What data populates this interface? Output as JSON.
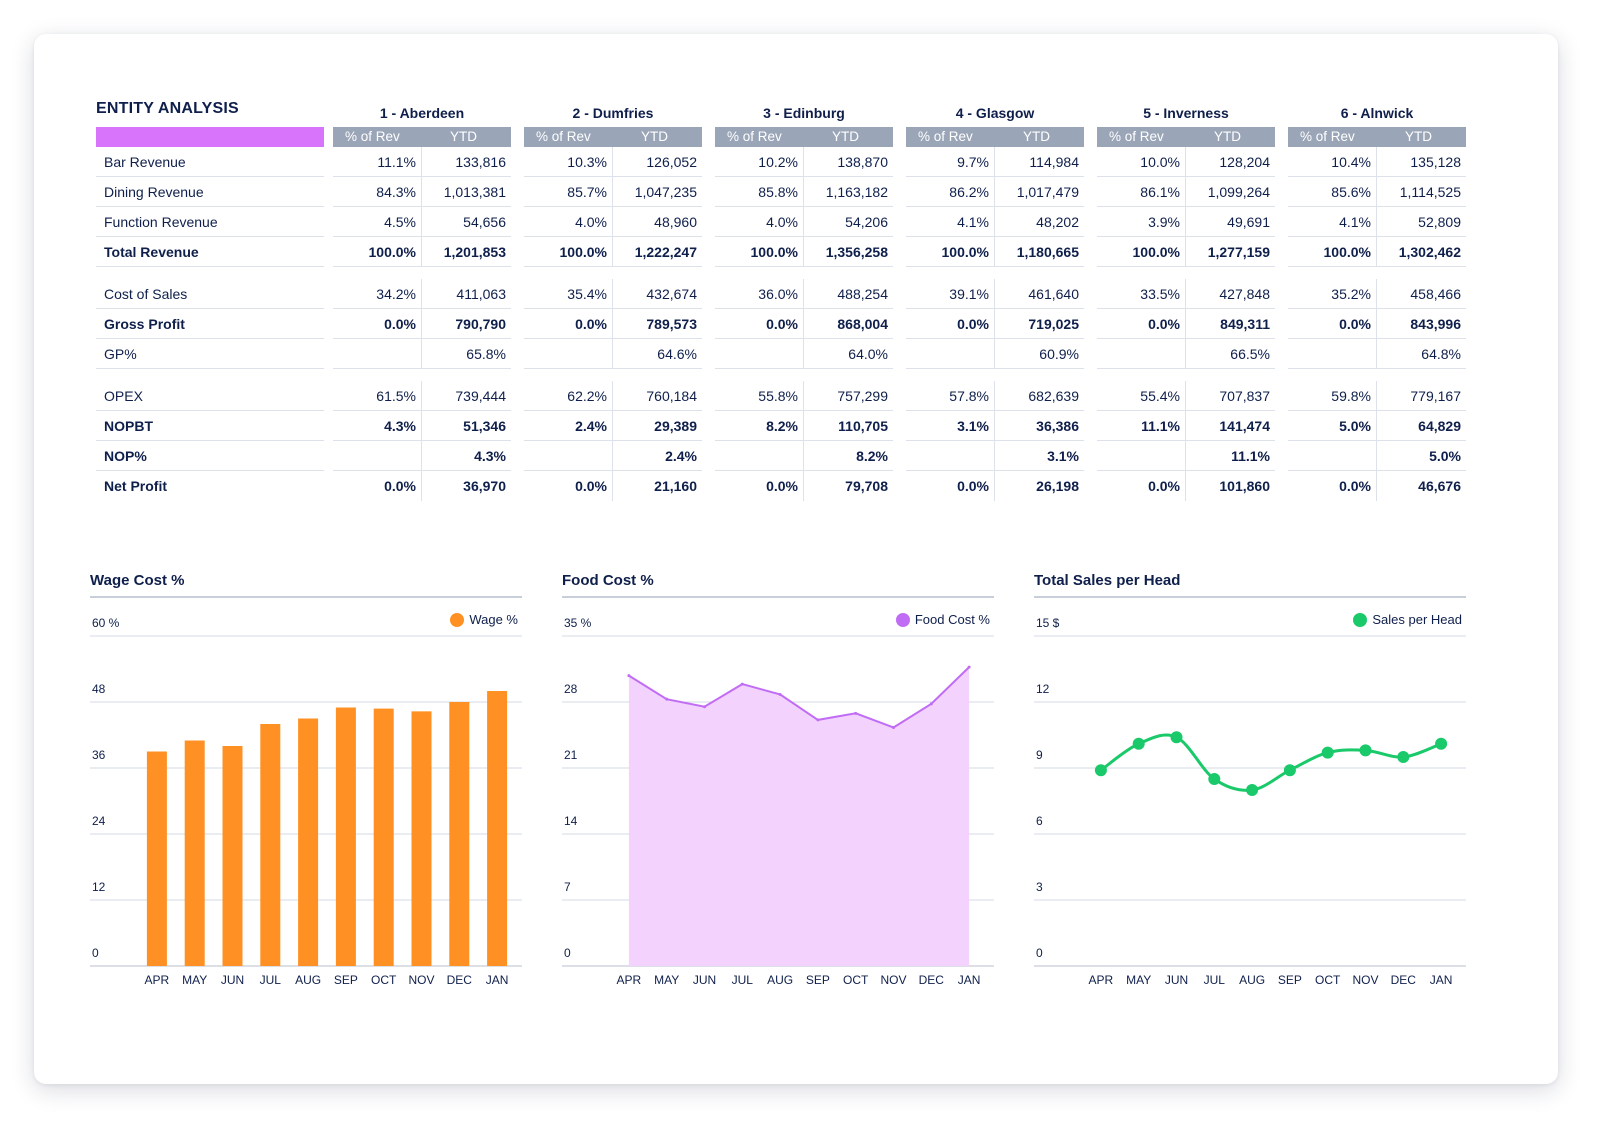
{
  "table": {
    "title": "ENTITY ANALYSIS",
    "accent_color": "#d873fb",
    "header_color": "#9aa6b8",
    "sub_headers": {
      "pct": "% of Rev",
      "ytd": "YTD"
    },
    "entities": [
      "1 - Aberdeen",
      "2 - Dumfries",
      "3 - Edinburg",
      "4 - Glasgow",
      "5 - Inverness",
      "6 - Alnwick"
    ],
    "rows": [
      {
        "label": "Bar Revenue",
        "bold": false,
        "cells": [
          [
            "11.1%",
            "133,816"
          ],
          [
            "10.3%",
            "126,052"
          ],
          [
            "10.2%",
            "138,870"
          ],
          [
            "9.7%",
            "114,984"
          ],
          [
            "10.0%",
            "128,204"
          ],
          [
            "10.4%",
            "135,128"
          ]
        ]
      },
      {
        "label": "Dining Revenue",
        "bold": false,
        "cells": [
          [
            "84.3%",
            "1,013,381"
          ],
          [
            "85.7%",
            "1,047,235"
          ],
          [
            "85.8%",
            "1,163,182"
          ],
          [
            "86.2%",
            "1,017,479"
          ],
          [
            "86.1%",
            "1,099,264"
          ],
          [
            "85.6%",
            "1,114,525"
          ]
        ]
      },
      {
        "label": "Function Revenue",
        "bold": false,
        "cells": [
          [
            "4.5%",
            "54,656"
          ],
          [
            "4.0%",
            "48,960"
          ],
          [
            "4.0%",
            "54,206"
          ],
          [
            "4.1%",
            "48,202"
          ],
          [
            "3.9%",
            "49,691"
          ],
          [
            "4.1%",
            "52,809"
          ]
        ]
      },
      {
        "label": "Total Revenue",
        "bold": true,
        "cells": [
          [
            "100.0%",
            "1,201,853"
          ],
          [
            "100.0%",
            "1,222,247"
          ],
          [
            "100.0%",
            "1,356,258"
          ],
          [
            "100.0%",
            "1,180,665"
          ],
          [
            "100.0%",
            "1,277,159"
          ],
          [
            "100.0%",
            "1,302,462"
          ]
        ]
      },
      {
        "label": "Cost of Sales",
        "bold": false,
        "cells": [
          [
            "34.2%",
            "411,063"
          ],
          [
            "35.4%",
            "432,674"
          ],
          [
            "36.0%",
            "488,254"
          ],
          [
            "39.1%",
            "461,640"
          ],
          [
            "33.5%",
            "427,848"
          ],
          [
            "35.2%",
            "458,466"
          ]
        ]
      },
      {
        "label": "Gross Profit",
        "bold": true,
        "cells": [
          [
            "0.0%",
            "790,790"
          ],
          [
            "0.0%",
            "789,573"
          ],
          [
            "0.0%",
            "868,004"
          ],
          [
            "0.0%",
            "719,025"
          ],
          [
            "0.0%",
            "849,311"
          ],
          [
            "0.0%",
            "843,996"
          ]
        ]
      },
      {
        "label": "GP%",
        "bold": false,
        "cells": [
          [
            "",
            "65.8%"
          ],
          [
            "",
            "64.6%"
          ],
          [
            "",
            "64.0%"
          ],
          [
            "",
            "60.9%"
          ],
          [
            "",
            "66.5%"
          ],
          [
            "",
            "64.8%"
          ]
        ]
      },
      {
        "label": "OPEX",
        "bold": false,
        "cells": [
          [
            "61.5%",
            "739,444"
          ],
          [
            "62.2%",
            "760,184"
          ],
          [
            "55.8%",
            "757,299"
          ],
          [
            "57.8%",
            "682,639"
          ],
          [
            "55.4%",
            "707,837"
          ],
          [
            "59.8%",
            "779,167"
          ]
        ]
      },
      {
        "label": "NOPBT",
        "bold": true,
        "cells": [
          [
            "4.3%",
            "51,346"
          ],
          [
            "2.4%",
            "29,389"
          ],
          [
            "8.2%",
            "110,705"
          ],
          [
            "3.1%",
            "36,386"
          ],
          [
            "11.1%",
            "141,474"
          ],
          [
            "5.0%",
            "64,829"
          ]
        ]
      },
      {
        "label": "NOP%",
        "bold": true,
        "cells": [
          [
            "",
            "4.3%"
          ],
          [
            "",
            "2.4%"
          ],
          [
            "",
            "8.2%"
          ],
          [
            "",
            "3.1%"
          ],
          [
            "",
            "11.1%"
          ],
          [
            "",
            "5.0%"
          ]
        ]
      },
      {
        "label": "Net Profit",
        "bold": true,
        "cells": [
          [
            "0.0%",
            "36,970"
          ],
          [
            "0.0%",
            "21,160"
          ],
          [
            "0.0%",
            "79,708"
          ],
          [
            "0.0%",
            "26,198"
          ],
          [
            "0.0%",
            "101,860"
          ],
          [
            "0.0%",
            "46,676"
          ]
        ]
      }
    ]
  },
  "chart_data": [
    {
      "type": "bar",
      "title": "Wage Cost %",
      "legend": "Wage %",
      "color": "#ff9124",
      "categories": [
        "APR",
        "MAY",
        "JUN",
        "JUL",
        "AUG",
        "SEP",
        "OCT",
        "NOV",
        "DEC",
        "JAN"
      ],
      "values": [
        39.0,
        41.0,
        40.0,
        44.0,
        45.0,
        47.0,
        46.8,
        46.3,
        48.0,
        50.0
      ],
      "ylim": [
        0,
        60
      ],
      "ytick_labels": [
        "0",
        "12",
        "24",
        "36",
        "48",
        "60 %"
      ]
    },
    {
      "type": "area",
      "title": "Food Cost %",
      "legend": "Food Cost %",
      "color": "#c16cf5",
      "fill": "#f3d3fd",
      "categories": [
        "APR",
        "MAY",
        "JUN",
        "JUL",
        "AUG",
        "SEP",
        "OCT",
        "NOV",
        "DEC",
        "JAN"
      ],
      "values": [
        30.8,
        28.3,
        27.5,
        29.9,
        28.8,
        26.1,
        26.8,
        25.3,
        27.8,
        31.7
      ],
      "ylim": [
        0,
        35
      ],
      "ytick_labels": [
        "0",
        "7",
        "14",
        "21",
        "28",
        "35 %"
      ]
    },
    {
      "type": "line",
      "title": "Total Sales per Head",
      "legend": "Sales per Head",
      "color": "#19c96a",
      "categories": [
        "APR",
        "MAY",
        "JUN",
        "JUL",
        "AUG",
        "SEP",
        "OCT",
        "NOV",
        "DEC",
        "JAN"
      ],
      "values": [
        8.9,
        10.1,
        10.4,
        8.5,
        8.0,
        8.9,
        9.7,
        9.8,
        9.5,
        10.1
      ],
      "ylim": [
        0,
        15
      ],
      "ytick_labels": [
        "0",
        "3",
        "6",
        "9",
        "12",
        "15 $"
      ]
    }
  ]
}
